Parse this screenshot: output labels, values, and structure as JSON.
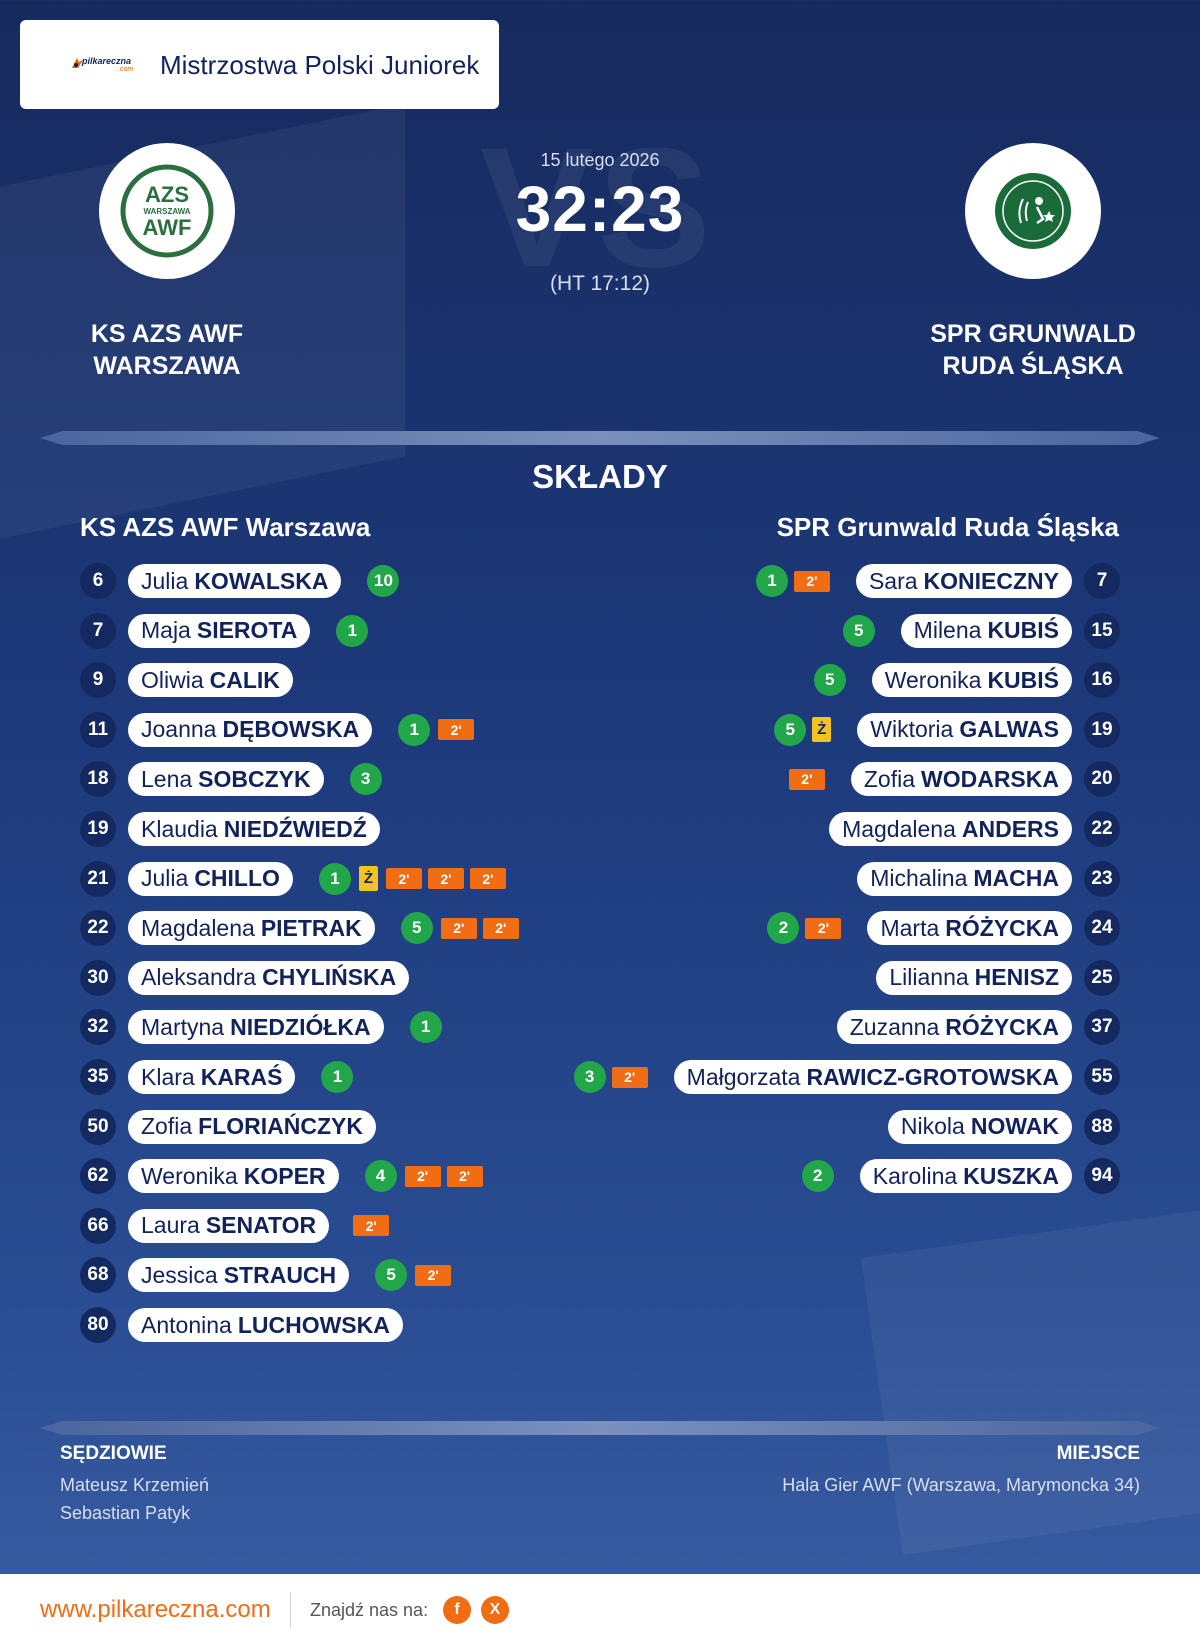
{
  "header": {
    "brand": "pilkareczna",
    "brand_suffix": ".com",
    "title": "Mistrzostwa Polski Juniorek"
  },
  "match": {
    "date": "15 lutego 2026",
    "score": "32:23",
    "halftime": "(HT 17:12)",
    "vs_watermark": "VS",
    "home": {
      "name_line1": "KS AZS AWF",
      "name_line2": "WARSZAWA",
      "logo_text_top": "AZS",
      "logo_text_mid": "WARSZAWA",
      "logo_text_bottom": "AWF"
    },
    "away": {
      "name_line1": "SPR GRUNWALD",
      "name_line2": "RUDA ŚLĄSKA"
    }
  },
  "lineups": {
    "title": "SKŁADY",
    "home_team": "KS AZS AWF Warszawa",
    "away_team": "SPR Grunwald Ruda Śląska",
    "home_players": [
      {
        "number": "6",
        "first": "Julia",
        "last": "KOWALSKA",
        "events": [
          {
            "type": "goals",
            "value": "10"
          }
        ]
      },
      {
        "number": "7",
        "first": "Maja",
        "last": "SIEROTA",
        "events": [
          {
            "type": "goals",
            "value": "1"
          }
        ]
      },
      {
        "number": "9",
        "first": "Oliwia",
        "last": "CALIK",
        "events": []
      },
      {
        "number": "11",
        "first": "Joanna",
        "last": "DĘBOWSKA",
        "events": [
          {
            "type": "goals",
            "value": "1"
          },
          {
            "type": "suspension",
            "value": "2'"
          }
        ]
      },
      {
        "number": "18",
        "first": "Lena",
        "last": "SOBCZYK",
        "events": [
          {
            "type": "goals",
            "value": "3"
          }
        ]
      },
      {
        "number": "19",
        "first": "Klaudia",
        "last": "NIEDŹWIEDŹ",
        "events": []
      },
      {
        "number": "21",
        "first": "Julia",
        "last": "CHILLO",
        "events": [
          {
            "type": "goals",
            "value": "1"
          },
          {
            "type": "yellow",
            "value": "Ż"
          },
          {
            "type": "suspension",
            "value": "2'"
          },
          {
            "type": "suspension",
            "value": "2'"
          },
          {
            "type": "suspension",
            "value": "2'"
          }
        ]
      },
      {
        "number": "22",
        "first": "Magdalena",
        "last": "PIETRAK",
        "events": [
          {
            "type": "goals",
            "value": "5"
          },
          {
            "type": "suspension",
            "value": "2'"
          },
          {
            "type": "suspension",
            "value": "2'"
          }
        ]
      },
      {
        "number": "30",
        "first": "Aleksandra",
        "last": "CHYLIŃSKA",
        "events": []
      },
      {
        "number": "32",
        "first": "Martyna",
        "last": "NIEDZIÓŁKA",
        "events": [
          {
            "type": "goals",
            "value": "1"
          }
        ]
      },
      {
        "number": "35",
        "first": "Klara",
        "last": "KARAŚ",
        "events": [
          {
            "type": "goals",
            "value": "1"
          }
        ]
      },
      {
        "number": "50",
        "first": "Zofia",
        "last": "FLORIAŃCZYK",
        "events": []
      },
      {
        "number": "62",
        "first": "Weronika",
        "last": "KOPER",
        "events": [
          {
            "type": "goals",
            "value": "4"
          },
          {
            "type": "suspension",
            "value": "2'"
          },
          {
            "type": "suspension",
            "value": "2'"
          }
        ]
      },
      {
        "number": "66",
        "first": "Laura",
        "last": "SENATOR",
        "events": [
          {
            "type": "suspension",
            "value": "2'"
          }
        ]
      },
      {
        "number": "68",
        "first": "Jessica",
        "last": "STRAUCH",
        "events": [
          {
            "type": "goals",
            "value": "5"
          },
          {
            "type": "suspension",
            "value": "2'"
          }
        ]
      },
      {
        "number": "80",
        "first": "Antonina",
        "last": "LUCHOWSKA",
        "events": []
      }
    ],
    "away_players": [
      {
        "number": "7",
        "first": "Sara",
        "last": "KONIECZNY",
        "events": [
          {
            "type": "goals",
            "value": "1"
          },
          {
            "type": "suspension",
            "value": "2'"
          }
        ]
      },
      {
        "number": "15",
        "first": "Milena",
        "last": "KUBIŚ",
        "events": [
          {
            "type": "goals",
            "value": "5"
          }
        ]
      },
      {
        "number": "16",
        "first": "Weronika",
        "last": "KUBIŚ",
        "events": [
          {
            "type": "goals",
            "value": "5"
          }
        ]
      },
      {
        "number": "19",
        "first": "Wiktoria",
        "last": "GALWAS",
        "events": [
          {
            "type": "goals",
            "value": "5"
          },
          {
            "type": "yellow",
            "value": "Ż"
          }
        ]
      },
      {
        "number": "20",
        "first": "Zofia",
        "last": "WODARSKA",
        "events": [
          {
            "type": "suspension",
            "value": "2'"
          }
        ]
      },
      {
        "number": "22",
        "first": "Magdalena",
        "last": "ANDERS",
        "events": []
      },
      {
        "number": "23",
        "first": "Michalina",
        "last": "MACHA",
        "events": []
      },
      {
        "number": "24",
        "first": "Marta",
        "last": "RÓŻYCKA",
        "events": [
          {
            "type": "goals",
            "value": "2"
          },
          {
            "type": "suspension",
            "value": "2'"
          }
        ]
      },
      {
        "number": "25",
        "first": "Lilianna",
        "last": "HENISZ",
        "events": []
      },
      {
        "number": "37",
        "first": "Zuzanna",
        "last": "RÓŻYCKA",
        "events": []
      },
      {
        "number": "55",
        "first": "Małgorzata",
        "last": "RAWICZ-GROTOWSKA",
        "events": [
          {
            "type": "goals",
            "value": "3"
          },
          {
            "type": "suspension",
            "value": "2'"
          }
        ]
      },
      {
        "number": "88",
        "first": "Nikola",
        "last": "NOWAK",
        "events": []
      },
      {
        "number": "94",
        "first": "Karolina",
        "last": "KUSZKA",
        "events": [
          {
            "type": "goals",
            "value": "2"
          }
        ]
      }
    ]
  },
  "officials": {
    "label": "SĘDZIOWIE",
    "names": [
      "Mateusz Krzemień",
      "Sebastian Patyk"
    ]
  },
  "venue": {
    "label": "MIEJSCE",
    "name": "Hala Gier AWF (Warszawa, Marymoncka 34)"
  },
  "footer": {
    "url": "www.pilkareczna.com",
    "find_us": "Znajdź nas na:",
    "facebook_glyph": "f",
    "x_glyph": "X"
  },
  "colors": {
    "background": "#1d3a7c",
    "accent": "#f06d14",
    "goal": "#22a64a",
    "yellow_card": "#f4c322",
    "home_logo_green": "#2b6e3f"
  }
}
